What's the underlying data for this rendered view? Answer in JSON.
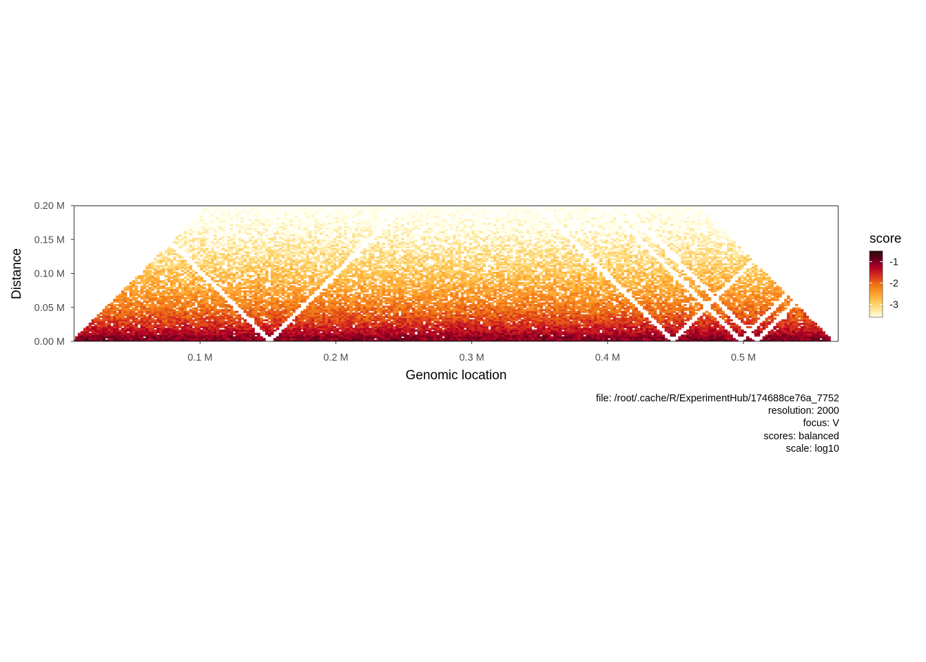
{
  "chart_data": {
    "type": "heatmap",
    "description_free": true,
    "xlabel": "Genomic location",
    "ylabel": "Distance",
    "xlim": [
      0.007,
      0.57
    ],
    "ylim": [
      0,
      0.2
    ],
    "x_unit": "M",
    "y_unit": "M",
    "x_ticks": [
      {
        "value": 0.1,
        "label": "0.1 M"
      },
      {
        "value": 0.2,
        "label": "0.2 M"
      },
      {
        "value": 0.3,
        "label": "0.3 M"
      },
      {
        "value": 0.4,
        "label": "0.4 M"
      },
      {
        "value": 0.5,
        "label": "0.5 M"
      }
    ],
    "y_ticks": [
      {
        "value": 0.0,
        "label": "0.00 M"
      },
      {
        "value": 0.05,
        "label": "0.05 M"
      },
      {
        "value": 0.1,
        "label": "0.10 M"
      },
      {
        "value": 0.15,
        "label": "0.15 M"
      },
      {
        "value": 0.2,
        "label": "0.20 M"
      }
    ],
    "resolution_bp": 2000,
    "score_scale": "log10",
    "score_range": [
      -3.6,
      -0.5
    ],
    "gap_positions": [
      0.151,
      0.448,
      0.498,
      0.51
    ],
    "legend": {
      "title": "score",
      "ticks": [
        {
          "value": -1,
          "label": "-1"
        },
        {
          "value": -2,
          "label": "-2"
        },
        {
          "value": -3,
          "label": "-3"
        }
      ],
      "colors": [
        "#ffffe5",
        "#fee391",
        "#fec44f",
        "#fe9929",
        "#ec7014",
        "#d7301f",
        "#b10026",
        "#67001f",
        "#2b0a0a"
      ]
    }
  },
  "caption": [
    "file: /root/.cache/R/ExperimentHub/174688ce76a_7752",
    "resolution: 2000",
    "focus: V",
    "scores: balanced",
    "scale: log10"
  ]
}
